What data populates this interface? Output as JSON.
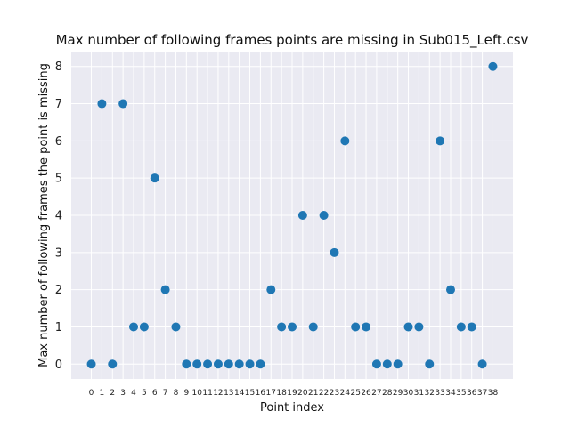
{
  "chart_data": {
    "type": "scatter",
    "title": "Max number of following frames points are missing in Sub015_Left.csv",
    "xlabel": "Point index",
    "ylabel": "Max number of following frames the point is missing",
    "x": [
      0,
      1,
      2,
      3,
      4,
      5,
      6,
      7,
      8,
      9,
      10,
      11,
      12,
      13,
      14,
      15,
      16,
      17,
      18,
      19,
      20,
      21,
      22,
      23,
      24,
      25,
      26,
      27,
      28,
      29,
      30,
      31,
      32,
      33,
      34,
      35,
      36,
      37,
      38
    ],
    "y": [
      0,
      7,
      0,
      7,
      1,
      1,
      5,
      2,
      1,
      0,
      0,
      0,
      0,
      0,
      0,
      0,
      0,
      2,
      1,
      1,
      4,
      1,
      4,
      3,
      6,
      1,
      1,
      0,
      0,
      0,
      1,
      1,
      0,
      6,
      2,
      1,
      1,
      0,
      8
    ],
    "xticks": [
      "0",
      "1",
      "2",
      "3",
      "4",
      "5",
      "6",
      "7",
      "8",
      "9",
      "10",
      "11",
      "12",
      "13",
      "14",
      "15",
      "16",
      "17",
      "18",
      "19",
      "20",
      "21",
      "22",
      "23",
      "24",
      "25",
      "26",
      "27",
      "28",
      "29",
      "30",
      "31",
      "32",
      "33",
      "34",
      "35",
      "36",
      "37",
      "38"
    ],
    "yticks": [
      "0",
      "1",
      "2",
      "3",
      "4",
      "5",
      "6",
      "7",
      "8"
    ],
    "xlim": [
      -1.9,
      39.9
    ],
    "ylim": [
      -0.4,
      8.4
    ],
    "grid": true,
    "colors": {
      "background": "#eaeaf2",
      "grid": "#ffffff",
      "marker": "#1f77b4"
    }
  }
}
